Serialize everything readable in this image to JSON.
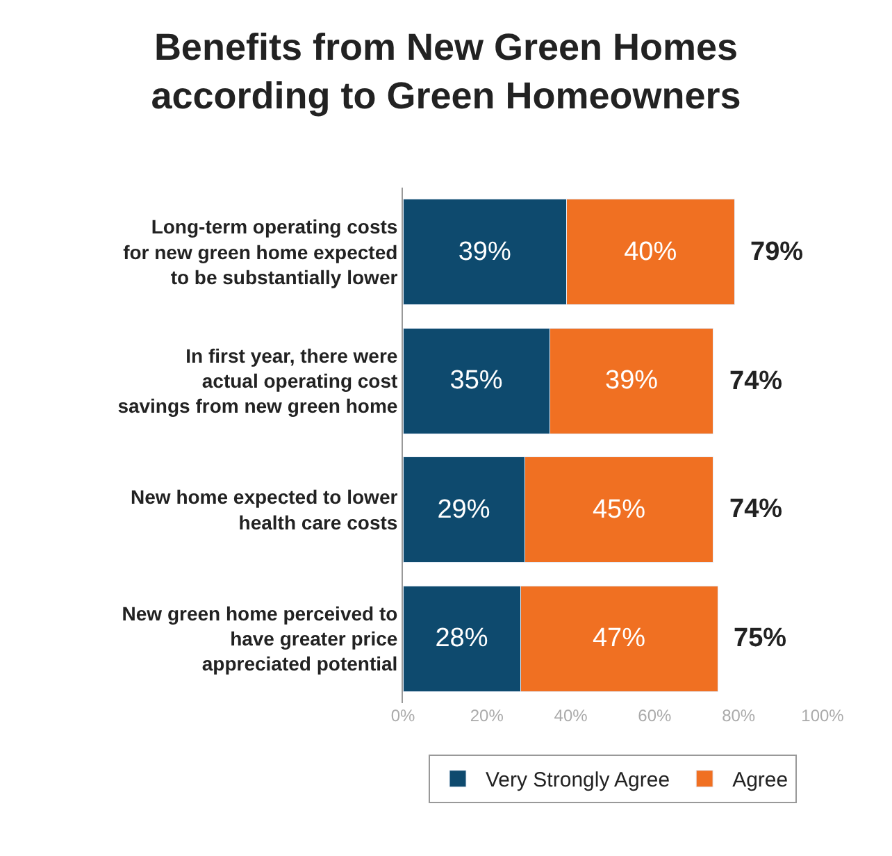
{
  "chart_data": {
    "type": "bar",
    "orientation": "horizontal",
    "stacked": true,
    "title": "Benefits from New Green Homes according to Green Homeowners",
    "categories": [
      "Long-term operating costs for new green home expected to be substantially lower",
      "In first year, there were actual operating cost savings from new green home",
      "New home expected to lower health care costs",
      "New green home perceived to have greater price appreciated potential"
    ],
    "series": [
      {
        "name": "Very Strongly Agree",
        "color": "#0e4a6e",
        "values": [
          39,
          35,
          29,
          28
        ],
        "value_labels": [
          "39%",
          "35%",
          "29%",
          "28%"
        ]
      },
      {
        "name": "Agree",
        "color": "#f07022",
        "values": [
          40,
          39,
          45,
          47
        ],
        "value_labels": [
          "40%",
          "39%",
          "45%",
          "47%"
        ]
      }
    ],
    "totals": [
      "79%",
      "74%",
      "74%",
      "75%"
    ],
    "xlim": [
      0,
      100
    ],
    "xticks": [
      {
        "value": 0,
        "label": "0%"
      },
      {
        "value": 20,
        "label": "20%"
      },
      {
        "value": 40,
        "label": "40%"
      },
      {
        "value": 60,
        "label": "60%"
      },
      {
        "value": 80,
        "label": "80%"
      },
      {
        "value": 100,
        "label": "100%"
      }
    ],
    "legend": "bottom"
  }
}
